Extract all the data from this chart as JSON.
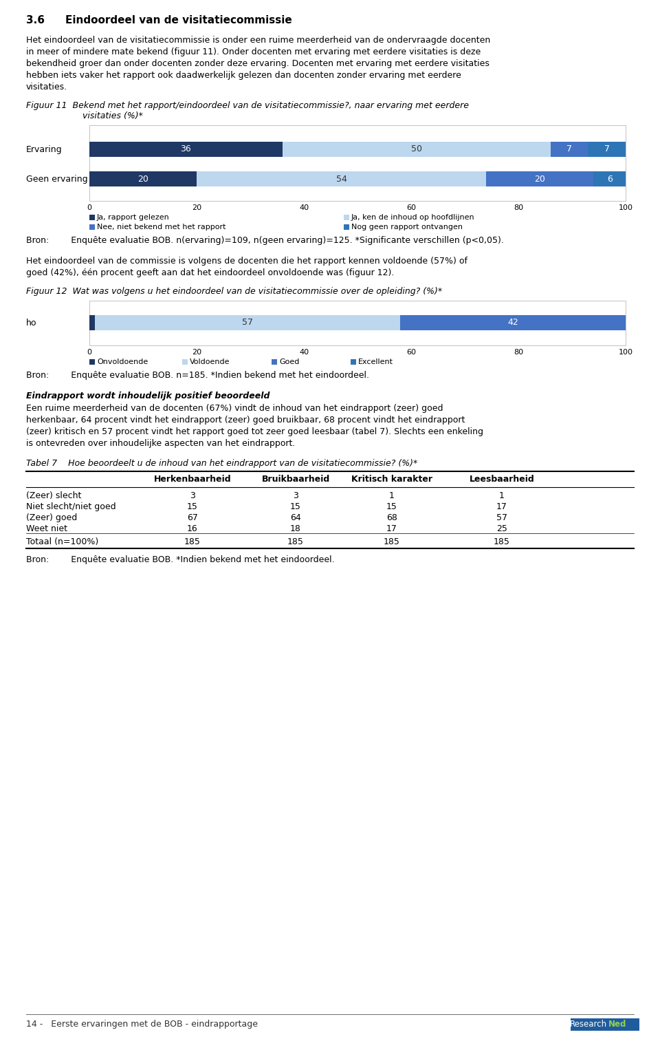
{
  "fig11_categories": [
    "Ervaring",
    "Geen ervaring"
  ],
  "fig11_data": [
    [
      36,
      50,
      7,
      7
    ],
    [
      20,
      54,
      20,
      6
    ]
  ],
  "fig11_colors": [
    "#1F3864",
    "#BDD7EE",
    "#4472C4",
    "#2E75B6"
  ],
  "fig11_legend": [
    "Ja, rapport gelezen",
    "Ja, ken de inhoud op hoofdlijnen",
    "Nee, niet bekend met het rapport",
    "Nog geen rapport ontvangen"
  ],
  "fig11_bron": "Bron:        Enquête evaluatie BOB. n(ervaring)=109, n(geen ervaring)=125. *Significante verschillen (p<0,05).",
  "fig12_data": [
    1,
    57,
    42,
    0
  ],
  "fig12_colors": [
    "#1F3864",
    "#BDD7EE",
    "#4472C4",
    "#2E75B6"
  ],
  "fig12_legend": [
    "Onvoldoende",
    "Voldoende",
    "Goed",
    "Excellent"
  ],
  "fig12_bron": "Bron:        Enquête evaluatie BOB. n=185. *Indien bekend met het eindoordeel.",
  "tabel7_headers": [
    "",
    "Herkenbaarheid",
    "Bruikbaarheid",
    "Kritisch karakter",
    "Leesbaarheid"
  ],
  "tabel7_rows": [
    [
      "(Zeer) slecht",
      "3",
      "3",
      "1",
      "1"
    ],
    [
      "Niet slecht/niet goed",
      "15",
      "15",
      "15",
      "17"
    ],
    [
      "(Zeer) goed",
      "67",
      "64",
      "68",
      "57"
    ],
    [
      "Weet niet",
      "16",
      "18",
      "17",
      "25"
    ],
    [
      "Totaal (n=100%)",
      "185",
      "185",
      "185",
      "185"
    ]
  ],
  "tabel7_bron": "Bron:        Enquête evaluatie BOB. *Indien bekend met het eindoordeel.",
  "footer_left": "14 -   Eerste ervaringen met de BOB - eindrapportage",
  "bg_color": "#FFFFFF",
  "dark_blue": "#1F3864",
  "light_blue": "#BDD7EE",
  "mid_blue": "#4472C4",
  "med_blue": "#2E75B6",
  "logo_blue": "#1F5C9E",
  "logo_green": "#92D050"
}
